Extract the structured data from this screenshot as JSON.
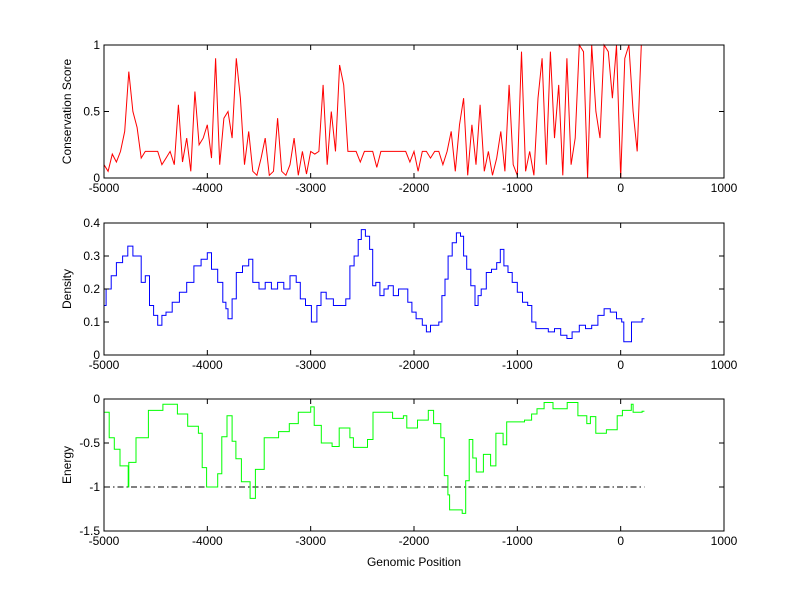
{
  "chart_data": [
    {
      "type": "line",
      "ylabel": "Conservation Score",
      "xlabel": "",
      "xlim": [
        -5000,
        1000
      ],
      "ylim": [
        0,
        1
      ],
      "xticks": [
        -5000,
        -4000,
        -3000,
        -2000,
        -1000,
        0,
        1000
      ],
      "yticks": [
        0,
        0.5,
        1
      ],
      "ytick_labels": [
        "0",
        "0.5",
        "1"
      ],
      "grid": false,
      "color": "#ff0000",
      "series": [
        {
          "name": "conservation",
          "x_start": -5000,
          "x_step": 40,
          "values": [
            0.1,
            0.05,
            0.18,
            0.12,
            0.2,
            0.35,
            0.8,
            0.5,
            0.38,
            0.15,
            0.2,
            0.2,
            0.2,
            0.2,
            0.1,
            0.15,
            0.2,
            0.1,
            0.55,
            0.12,
            0.3,
            0.05,
            0.65,
            0.25,
            0.3,
            0.4,
            0.15,
            0.9,
            0.1,
            0.45,
            0.5,
            0.3,
            0.9,
            0.6,
            0.1,
            0.35,
            0.05,
            0.02,
            0.15,
            0.3,
            0.02,
            0.05,
            0.45,
            0.05,
            0.02,
            0.1,
            0.3,
            0.02,
            0.2,
            0.03,
            0.2,
            0.18,
            0.2,
            0.7,
            0.1,
            0.5,
            0.2,
            0.85,
            0.7,
            0.2,
            0.2,
            0.2,
            0.12,
            0.2,
            0.2,
            0.2,
            0.08,
            0.2,
            0.2,
            0.2,
            0.2,
            0.2,
            0.2,
            0.2,
            0.12,
            0.2,
            0.05,
            0.2,
            0.2,
            0.15,
            0.2,
            0.2,
            0.1,
            0.2,
            0.35,
            0.05,
            0.4,
            0.6,
            0.02,
            0.4,
            0.1,
            0.55,
            0.05,
            0.2,
            0.02,
            0.15,
            0.35,
            0.05,
            0.7,
            0.1,
            0.02,
            0.95,
            0.05,
            0.2,
            0.02,
            0.6,
            0.9,
            0.1,
            0.95,
            0.3,
            0.7,
            0.02,
            0.9,
            0.1,
            0.3,
            1.0,
            0.95,
            0.0,
            1.0,
            0.5,
            0.3,
            1.0,
            0.95,
            0.6,
            1.0,
            0.0,
            0.9,
            1.0,
            0.5,
            0.2,
            1.0,
            1.0
          ]
        }
      ]
    },
    {
      "type": "line",
      "ylabel": "Density",
      "xlabel": "",
      "xlim": [
        -5000,
        1000
      ],
      "ylim": [
        0,
        0.4
      ],
      "xticks": [
        -5000,
        -4000,
        -3000,
        -2000,
        -1000,
        0,
        1000
      ],
      "yticks": [
        0,
        0.1,
        0.2,
        0.3,
        0.4
      ],
      "ytick_labels": [
        "0",
        "0.1",
        "0.2",
        "0.3",
        "0.4"
      ],
      "grid": false,
      "color": "#0000ff",
      "series": [
        {
          "name": "density",
          "points": [
            [
              -5000,
              0.15
            ],
            [
              -4980,
              0.2
            ],
            [
              -4930,
              0.24
            ],
            [
              -4880,
              0.28
            ],
            [
              -4820,
              0.3
            ],
            [
              -4770,
              0.33
            ],
            [
              -4720,
              0.3
            ],
            [
              -4680,
              0.3
            ],
            [
              -4640,
              0.22
            ],
            [
              -4600,
              0.24
            ],
            [
              -4560,
              0.15
            ],
            [
              -4520,
              0.12
            ],
            [
              -4480,
              0.09
            ],
            [
              -4440,
              0.12
            ],
            [
              -4400,
              0.13
            ],
            [
              -4340,
              0.16
            ],
            [
              -4270,
              0.19
            ],
            [
              -4200,
              0.22
            ],
            [
              -4130,
              0.27
            ],
            [
              -4060,
              0.29
            ],
            [
              -4000,
              0.31
            ],
            [
              -3960,
              0.26
            ],
            [
              -3900,
              0.22
            ],
            [
              -3850,
              0.16
            ],
            [
              -3820,
              0.14
            ],
            [
              -3800,
              0.11
            ],
            [
              -3760,
              0.17
            ],
            [
              -3720,
              0.25
            ],
            [
              -3660,
              0.27
            ],
            [
              -3600,
              0.29
            ],
            [
              -3560,
              0.22
            ],
            [
              -3500,
              0.2
            ],
            [
              -3440,
              0.22
            ],
            [
              -3380,
              0.2
            ],
            [
              -3320,
              0.22
            ],
            [
              -3260,
              0.2
            ],
            [
              -3200,
              0.24
            ],
            [
              -3140,
              0.22
            ],
            [
              -3100,
              0.17
            ],
            [
              -3050,
              0.15
            ],
            [
              -2993,
              0.1
            ],
            [
              -2940,
              0.15
            ],
            [
              -2900,
              0.19
            ],
            [
              -2850,
              0.17
            ],
            [
              -2780,
              0.15
            ],
            [
              -2720,
              0.15
            ],
            [
              -2660,
              0.17
            ],
            [
              -2620,
              0.27
            ],
            [
              -2580,
              0.3
            ],
            [
              -2540,
              0.35
            ],
            [
              -2510,
              0.38
            ],
            [
              -2470,
              0.36
            ],
            [
              -2430,
              0.32
            ],
            [
              -2400,
              0.21
            ],
            [
              -2370,
              0.22
            ],
            [
              -2330,
              0.18
            ],
            [
              -2290,
              0.2
            ],
            [
              -2250,
              0.21
            ],
            [
              -2200,
              0.18
            ],
            [
              -2150,
              0.2
            ],
            [
              -2100,
              0.2
            ],
            [
              -2060,
              0.16
            ],
            [
              -2020,
              0.13
            ],
            [
              -1980,
              0.11
            ],
            [
              -1920,
              0.09
            ],
            [
              -1880,
              0.07
            ],
            [
              -1840,
              0.09
            ],
            [
              -1800,
              0.09
            ],
            [
              -1760,
              0.1
            ],
            [
              -1730,
              0.18
            ],
            [
              -1700,
              0.23
            ],
            [
              -1670,
              0.3
            ],
            [
              -1630,
              0.34
            ],
            [
              -1590,
              0.37
            ],
            [
              -1550,
              0.36
            ],
            [
              -1520,
              0.3
            ],
            [
              -1490,
              0.26
            ],
            [
              -1450,
              0.21
            ],
            [
              -1410,
              0.15
            ],
            [
              -1380,
              0.18
            ],
            [
              -1350,
              0.2
            ],
            [
              -1300,
              0.25
            ],
            [
              -1250,
              0.26
            ],
            [
              -1200,
              0.28
            ],
            [
              -1165,
              0.32
            ],
            [
              -1130,
              0.27
            ],
            [
              -1090,
              0.25
            ],
            [
              -1050,
              0.22
            ],
            [
              -1000,
              0.19
            ],
            [
              -950,
              0.16
            ],
            [
              -900,
              0.15
            ],
            [
              -860,
              0.1
            ],
            [
              -820,
              0.08
            ],
            [
              -760,
              0.08
            ],
            [
              -700,
              0.07
            ],
            [
              -640,
              0.08
            ],
            [
              -580,
              0.06
            ],
            [
              -520,
              0.05
            ],
            [
              -470,
              0.07
            ],
            [
              -400,
              0.09
            ],
            [
              -340,
              0.08
            ],
            [
              -280,
              0.09
            ],
            [
              -220,
              0.12
            ],
            [
              -160,
              0.14
            ],
            [
              -100,
              0.13
            ],
            [
              -40,
              0.11
            ],
            [
              10,
              0.1
            ],
            [
              30,
              0.04
            ],
            [
              80,
              0.04
            ],
            [
              105,
              0.1
            ],
            [
              160,
              0.1
            ],
            [
              207,
              0.11
            ],
            [
              230,
              0.11
            ]
          ]
        }
      ]
    },
    {
      "type": "line",
      "ylabel": "Energy",
      "xlabel": "Genomic Position",
      "xlim": [
        -5000,
        1000
      ],
      "ylim": [
        -1.5,
        0
      ],
      "xticks": [
        -5000,
        -4000,
        -3000,
        -2000,
        -1000,
        0,
        1000
      ],
      "yticks": [
        -1.5,
        -1,
        -0.5,
        0
      ],
      "ytick_labels": [
        "-1.5",
        "-1",
        "-0.5",
        "0"
      ],
      "grid": false,
      "color": "#00ff00",
      "reference_line": {
        "y": -1,
        "x_range": [
          -5000,
          230
        ],
        "style": "dash-dot",
        "color": "#000000"
      },
      "series": [
        {
          "name": "energy",
          "points": [
            [
              -5000,
              -0.15
            ],
            [
              -4950,
              -0.44
            ],
            [
              -4900,
              -0.57
            ],
            [
              -4845,
              -0.76
            ],
            [
              -4766,
              -1.0
            ],
            [
              -4760,
              -0.72
            ],
            [
              -4690,
              -0.44
            ],
            [
              -4570,
              -0.13
            ],
            [
              -4430,
              -0.06
            ],
            [
              -4290,
              -0.17
            ],
            [
              -4190,
              -0.31
            ],
            [
              -4086,
              -0.39
            ],
            [
              -4050,
              -0.78
            ],
            [
              -4007,
              -1.0
            ],
            [
              -3900,
              -0.85
            ],
            [
              -3860,
              -0.43
            ],
            [
              -3810,
              -0.19
            ],
            [
              -3760,
              -0.48
            ],
            [
              -3724,
              -0.68
            ],
            [
              -3670,
              -0.94
            ],
            [
              -3586,
              -1.13
            ],
            [
              -3535,
              -0.8
            ],
            [
              -3450,
              -0.44
            ],
            [
              -3310,
              -0.37
            ],
            [
              -3207,
              -0.28
            ],
            [
              -3120,
              -0.15
            ],
            [
              -3000,
              -0.09
            ],
            [
              -2966,
              -0.3
            ],
            [
              -2897,
              -0.5
            ],
            [
              -2793,
              -0.54
            ],
            [
              -2724,
              -0.33
            ],
            [
              -2620,
              -0.44
            ],
            [
              -2586,
              -0.55
            ],
            [
              -2450,
              -0.46
            ],
            [
              -2397,
              -0.15
            ],
            [
              -2207,
              -0.22
            ],
            [
              -2103,
              -0.19
            ],
            [
              -2070,
              -0.33
            ],
            [
              -1966,
              -0.24
            ],
            [
              -1862,
              -0.13
            ],
            [
              -1810,
              -0.28
            ],
            [
              -1741,
              -0.44
            ],
            [
              -1707,
              -0.87
            ],
            [
              -1672,
              -1.09
            ],
            [
              -1655,
              -1.26
            ],
            [
              -1534,
              -1.3
            ],
            [
              -1500,
              -0.93
            ],
            [
              -1466,
              -0.46
            ],
            [
              -1431,
              -0.67
            ],
            [
              -1397,
              -0.83
            ],
            [
              -1328,
              -0.63
            ],
            [
              -1259,
              -0.76
            ],
            [
              -1207,
              -0.39
            ],
            [
              -1138,
              -0.52
            ],
            [
              -1103,
              -0.26
            ],
            [
              -931,
              -0.24
            ],
            [
              -862,
              -0.17
            ],
            [
              -810,
              -0.11
            ],
            [
              -741,
              -0.04
            ],
            [
              -655,
              -0.11
            ],
            [
              -517,
              -0.04
            ],
            [
              -414,
              -0.19
            ],
            [
              -328,
              -0.28
            ],
            [
              -293,
              -0.2
            ],
            [
              -241,
              -0.39
            ],
            [
              -138,
              -0.35
            ],
            [
              -34,
              -0.19
            ],
            [
              17,
              -0.13
            ],
            [
              103,
              -0.06
            ],
            [
              120,
              -0.15
            ],
            [
              207,
              -0.14
            ],
            [
              230,
              -0.14
            ]
          ]
        }
      ]
    }
  ]
}
